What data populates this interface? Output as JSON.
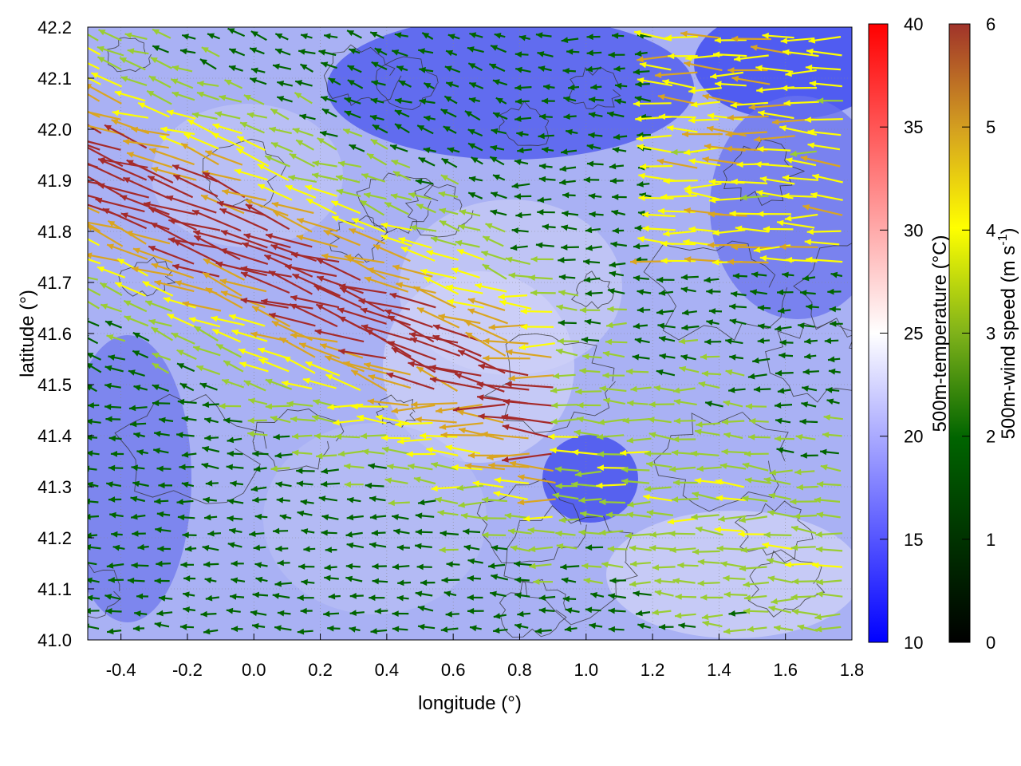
{
  "chart_data": {
    "type": "heatmap",
    "title": "",
    "xlabel": "longitude (°)",
    "ylabel": "latitude (°)",
    "xlim": [
      -0.5,
      1.8
    ],
    "ylim": [
      41.0,
      42.2
    ],
    "x_ticks": [
      -0.4,
      -0.2,
      0.0,
      0.2,
      0.4,
      0.6,
      0.8,
      1.0,
      1.2,
      1.4,
      1.6,
      1.8
    ],
    "x_tick_labels": [
      "-0.4",
      "-0.2",
      "0.0",
      "0.2",
      "0.4",
      "0.6",
      "0.8",
      "1.0",
      "1.2",
      "1.4",
      "1.6",
      "1.8"
    ],
    "y_ticks": [
      41.0,
      41.1,
      41.2,
      41.3,
      41.4,
      41.5,
      41.6,
      41.7,
      41.8,
      41.9,
      42.0,
      42.1,
      42.2
    ],
    "y_tick_labels": [
      "41.0",
      "41.1",
      "41.2",
      "41.3",
      "41.4",
      "41.5",
      "41.6",
      "41.7",
      "41.8",
      "41.9",
      "42.0",
      "42.1",
      "42.2"
    ],
    "grid": true,
    "background_field": {
      "label": "500m-temperature (°C)",
      "range": [
        10,
        40
      ],
      "ticks": [
        10,
        15,
        20,
        25,
        30,
        35,
        40
      ],
      "tick_labels": [
        "10",
        "15",
        "20",
        "25",
        "30",
        "35",
        "40"
      ],
      "colors": [
        "#0000ff",
        "#ffffff",
        "#ff0000"
      ]
    },
    "vector_field": {
      "label": "500m-wind speed (m s-1)",
      "label_main": "500m-wind speed (m s",
      "label_exp": "-1",
      "label_close": ")",
      "range": [
        0,
        6
      ],
      "ticks": [
        0,
        1,
        2,
        3,
        4,
        5,
        6
      ],
      "tick_labels": [
        "0",
        "1",
        "2",
        "3",
        "4",
        "5",
        "6"
      ],
      "colors": [
        "#000000",
        "#006400",
        "#9acd32",
        "#ffff00",
        "#daa520",
        "#a52a2a"
      ]
    },
    "annotations": []
  }
}
